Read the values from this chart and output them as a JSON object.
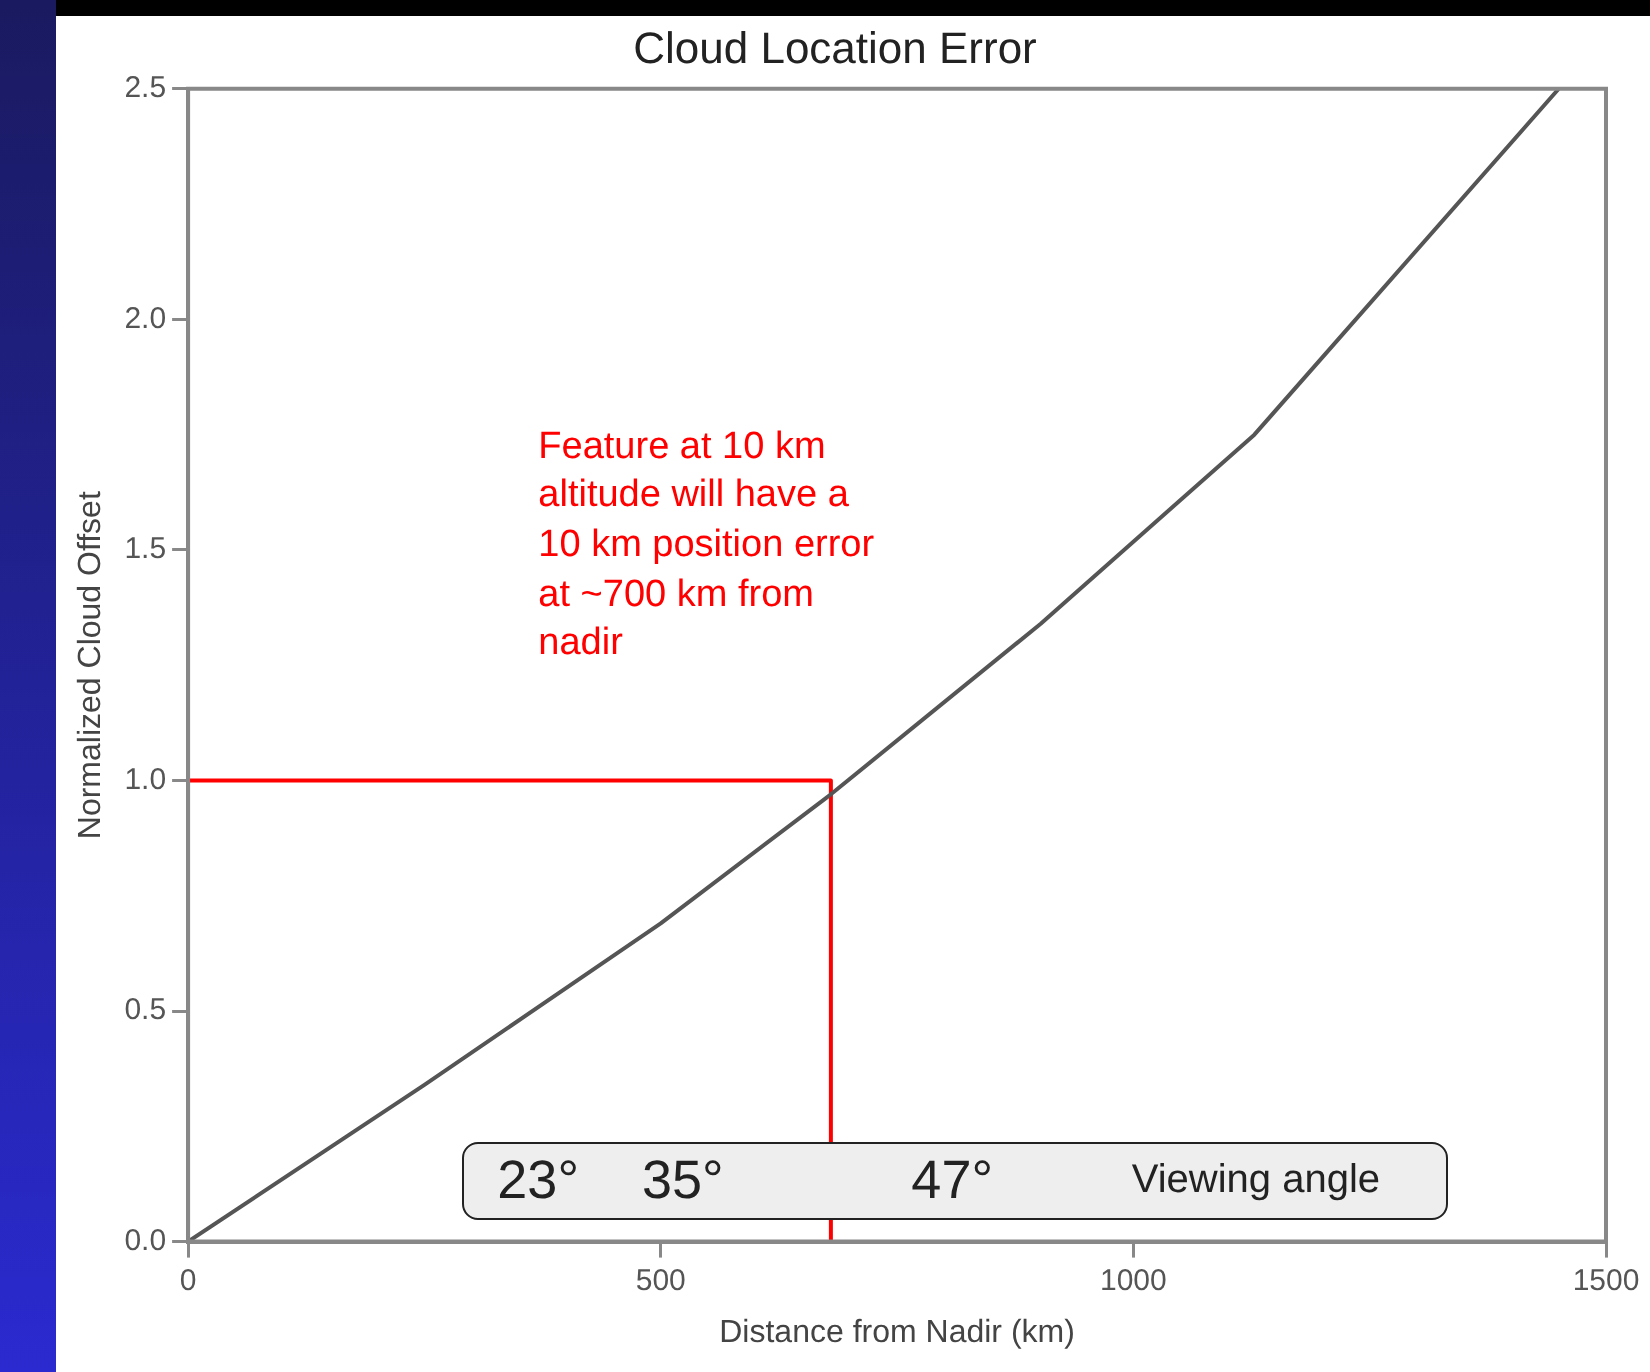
{
  "chart_data": {
    "type": "line",
    "title": "Cloud Location Error",
    "xlabel": "Distance from Nadir (km)",
    "ylabel": "Normalized Cloud Offset",
    "xlim": [
      0,
      1500
    ],
    "xticks": [
      0,
      500,
      1000,
      1500
    ],
    "ylim": [
      0,
      2.5
    ],
    "yticks": [
      {
        "value": 0,
        "label": "0.0"
      },
      {
        "value": 0.5,
        "label": "0.5"
      },
      {
        "value": 1,
        "label": "1.0"
      },
      {
        "value": 1.5,
        "label": "1.5"
      },
      {
        "value": 2,
        "label": "2.0"
      },
      {
        "value": 2.5,
        "label": "2.5"
      }
    ],
    "grid": false,
    "legend": false,
    "marker": "none",
    "line_style": "solid",
    "series": [
      {
        "color": "#555555",
        "x": [
          0,
          250,
          500,
          680,
          902,
          1128,
          1450
        ],
        "values": [
          0,
          0.34,
          0.69,
          0.97,
          1.34,
          1.75,
          2.5
        ]
      },
      {
        "color": "#ff0000",
        "x": [
          0,
          680,
          680
        ],
        "values": [
          1,
          1,
          0
        ]
      }
    ],
    "annotations": [
      "Feature at 10 km altitude will have a 10 km position error at ~700 km from nadir",
      "23°",
      "35°",
      "47°",
      "Viewing angle"
    ]
  }
}
